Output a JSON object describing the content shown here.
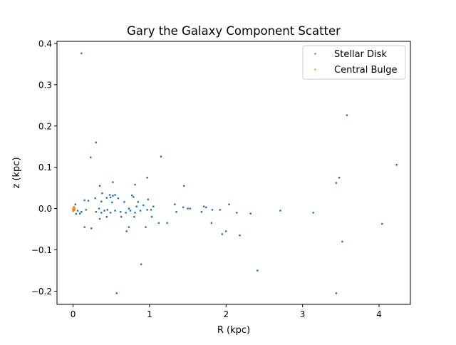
{
  "chart_data": {
    "type": "scatter",
    "title": "Gary the Galaxy Component Scatter",
    "xlabel": "R (kpc)",
    "ylabel": "z (kpc)",
    "xlim": [
      -0.21,
      4.41
    ],
    "ylim": [
      -0.232,
      0.405
    ],
    "xticks": [
      0,
      1,
      2,
      3,
      4
    ],
    "yticks": [
      -0.2,
      -0.1,
      0.0,
      0.1,
      0.2,
      0.3,
      0.4
    ],
    "xtick_labels": [
      "0",
      "1",
      "2",
      "3",
      "4"
    ],
    "ytick_labels": [
      "−0.2",
      "−0.1",
      "0.0",
      "0.1",
      "0.2",
      "0.3",
      "0.4"
    ],
    "grid": false,
    "legend": {
      "position": "upper right"
    },
    "series": [
      {
        "name": "Stellar Disk",
        "color": "#1f77b4",
        "points": [
          [
            0.11,
            0.376
          ],
          [
            0.3,
            0.16
          ],
          [
            0.23,
            0.124
          ],
          [
            1.15,
            0.126
          ],
          [
            0.97,
            0.075
          ],
          [
            0.52,
            0.064
          ],
          [
            0.35,
            0.055
          ],
          [
            0.81,
            0.058
          ],
          [
            1.45,
            0.055
          ],
          [
            0.38,
            0.037
          ],
          [
            0.48,
            0.033
          ],
          [
            0.52,
            0.031
          ],
          [
            0.55,
            0.033
          ],
          [
            0.44,
            0.026
          ],
          [
            0.49,
            0.027
          ],
          [
            0.59,
            0.025
          ],
          [
            0.77,
            0.032
          ],
          [
            0.79,
            0.028
          ],
          [
            0.29,
            0.025
          ],
          [
            0.15,
            0.02
          ],
          [
            0.2,
            0.019
          ],
          [
            0.37,
            0.017
          ],
          [
            0.51,
            0.015
          ],
          [
            0.67,
            0.016
          ],
          [
            0.85,
            0.016
          ],
          [
            0.98,
            0.022
          ],
          [
            0.83,
            0.005
          ],
          [
            1.05,
            0.005
          ],
          [
            1.33,
            0.01
          ],
          [
            0.03,
            0.01
          ],
          [
            2.04,
            0.01
          ],
          [
            1.71,
            0.005
          ],
          [
            1.44,
            0.003
          ],
          [
            1.5,
            0.0
          ],
          [
            1.53,
            0.0
          ],
          [
            1.74,
            0.003
          ],
          [
            1.82,
            -0.003
          ],
          [
            1.92,
            -0.003
          ],
          [
            0.06,
            -0.005
          ],
          [
            0.11,
            -0.008
          ],
          [
            0.17,
            -0.003
          ],
          [
            0.3,
            -0.008
          ],
          [
            0.34,
            0.0
          ],
          [
            0.37,
            -0.01
          ],
          [
            0.41,
            -0.005
          ],
          [
            0.45,
            -0.003
          ],
          [
            0.49,
            -0.01
          ],
          [
            0.55,
            -0.005
          ],
          [
            0.62,
            -0.008
          ],
          [
            0.69,
            -0.01
          ],
          [
            0.73,
            0.0
          ],
          [
            0.75,
            -0.005
          ],
          [
            0.81,
            -0.01
          ],
          [
            0.88,
            -0.005
          ],
          [
            0.92,
            0.008
          ],
          [
            0.97,
            -0.003
          ],
          [
            1.02,
            -0.003
          ],
          [
            0.04,
            -0.013
          ],
          [
            0.09,
            -0.012
          ],
          [
            1.35,
            -0.008
          ],
          [
            1.68,
            -0.008
          ],
          [
            2.14,
            -0.01
          ],
          [
            2.32,
            -0.012
          ],
          [
            2.71,
            -0.005
          ],
          [
            3.14,
            -0.01
          ],
          [
            0.35,
            -0.025
          ],
          [
            0.44,
            -0.02
          ],
          [
            0.63,
            -0.02
          ],
          [
            0.8,
            -0.02
          ],
          [
            1.03,
            -0.02
          ],
          [
            1.12,
            -0.035
          ],
          [
            1.23,
            -0.035
          ],
          [
            1.81,
            -0.035
          ],
          [
            0.15,
            -0.045
          ],
          [
            0.24,
            -0.048
          ],
          [
            0.7,
            -0.055
          ],
          [
            0.73,
            -0.045
          ],
          [
            0.95,
            -0.045
          ],
          [
            2.0,
            -0.055
          ],
          [
            1.95,
            -0.062
          ],
          [
            2.18,
            -0.065
          ],
          [
            0.89,
            -0.135
          ],
          [
            2.41,
            -0.15
          ],
          [
            0.57,
            -0.205
          ],
          [
            3.44,
            -0.205
          ],
          [
            3.58,
            0.226
          ],
          [
            4.23,
            0.106
          ],
          [
            3.48,
            0.075
          ],
          [
            3.44,
            0.062
          ],
          [
            4.04,
            -0.037
          ],
          [
            3.52,
            -0.08
          ]
        ]
      },
      {
        "name": "Central Bulge",
        "color": "#ff7f0e",
        "points": [
          [
            0.0,
            0.0
          ],
          [
            0.01,
            0.002
          ],
          [
            0.0,
            -0.002
          ],
          [
            0.01,
            -0.004
          ],
          [
            0.02,
            0.001
          ],
          [
            0.0,
            -0.006
          ],
          [
            0.01,
            0.004
          ],
          [
            0.02,
            -0.003
          ]
        ]
      }
    ]
  }
}
